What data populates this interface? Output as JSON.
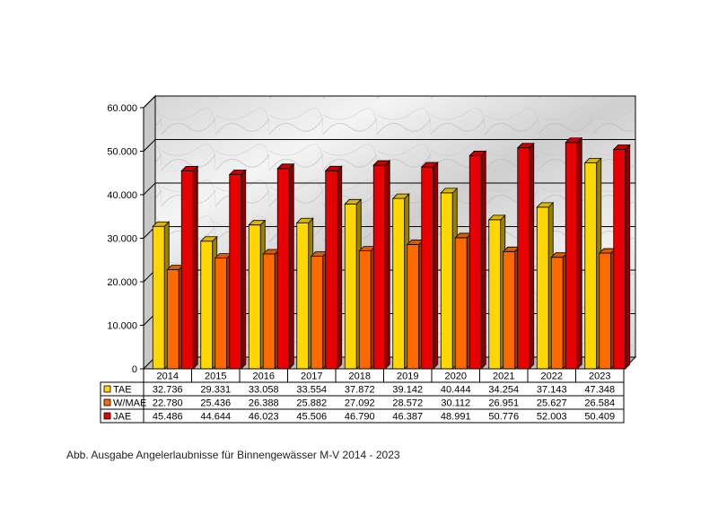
{
  "caption": "Abb. Ausgabe Angelerlaubnisse für Binnengewässer M-V 2014 - 2023",
  "chart_data": {
    "type": "bar",
    "categories": [
      "2014",
      "2015",
      "2016",
      "2017",
      "2018",
      "2019",
      "2020",
      "2021",
      "2022",
      "2023"
    ],
    "series": [
      {
        "name": "TAE",
        "color": "#FFD700",
        "labels": [
          "32.736",
          "29.331",
          "33.058",
          "33.554",
          "37.872",
          "39.142",
          "40.444",
          "34.254",
          "37.143",
          "47.348"
        ],
        "values": [
          32736,
          29331,
          33058,
          33554,
          37872,
          39142,
          40444,
          34254,
          37143,
          47348
        ]
      },
      {
        "name": "W/MAE",
        "color": "#FF6A00",
        "labels": [
          "22.780",
          "25.436",
          "26.388",
          "25.882",
          "27.092",
          "28.572",
          "30.112",
          "26.951",
          "25.627",
          "26.584"
        ],
        "values": [
          22780,
          25436,
          26388,
          25882,
          27092,
          28572,
          30112,
          26951,
          25627,
          26584
        ]
      },
      {
        "name": "JAE",
        "color": "#E80000",
        "labels": [
          "45.486",
          "44.644",
          "46.023",
          "45.506",
          "46.790",
          "46.387",
          "48.991",
          "50.776",
          "52.003",
          "50.409"
        ],
        "values": [
          45486,
          44644,
          46023,
          45506,
          46790,
          46387,
          48991,
          50776,
          52003,
          50409
        ]
      }
    ],
    "ylim": [
      0,
      60000
    ],
    "yticks": [
      0,
      10000,
      20000,
      30000,
      40000,
      50000,
      60000
    ],
    "ytick_labels": [
      "0",
      "10.000",
      "20.000",
      "30.000",
      "40.000",
      "50.000",
      "60.000"
    ],
    "grid": true,
    "legend": "data-table-left"
  }
}
